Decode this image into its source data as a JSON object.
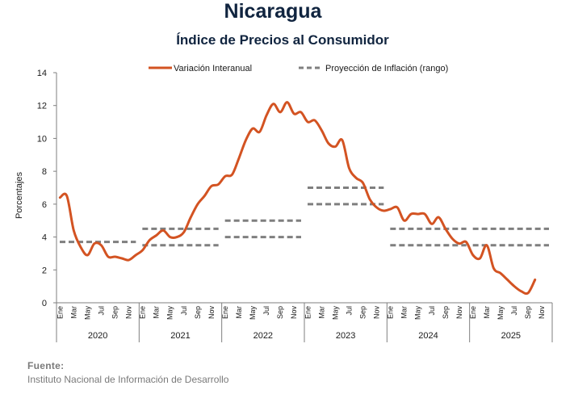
{
  "title": "Nicaragua",
  "subtitle": "Índice de Precios al Consumidor",
  "source": {
    "label": "Fuente:",
    "text": "Instituto Nacional de Información de Desarrollo"
  },
  "colors": {
    "series": "#d35322",
    "projection": "#7f7f7f",
    "axis": "#7f7f7f"
  },
  "chart_data": {
    "type": "line",
    "ylabel": "Porcentajes",
    "xlabel": "",
    "ylim": [
      0,
      14
    ],
    "yticks": [
      0,
      2,
      4,
      6,
      8,
      10,
      12,
      14
    ],
    "grid": false,
    "legend_position": "top",
    "month_labels": [
      "Ene",
      "Mar",
      "May",
      "Jul",
      "Sep",
      "Nov"
    ],
    "years": [
      "2020",
      "2021",
      "2022",
      "2023",
      "2024",
      "2025"
    ],
    "series": [
      {
        "name": "Variación Interanual",
        "style": "solid",
        "start": "2020-01",
        "values": [
          6.4,
          6.5,
          4.4,
          3.4,
          2.9,
          3.6,
          3.5,
          2.8,
          2.8,
          2.7,
          2.6,
          2.9,
          3.2,
          3.8,
          4.1,
          4.4,
          4.0,
          4.0,
          4.3,
          5.2,
          6.0,
          6.5,
          7.1,
          7.2,
          7.7,
          7.8,
          8.8,
          9.9,
          10.6,
          10.4,
          11.4,
          12.1,
          11.6,
          12.2,
          11.5,
          11.6,
          11.0,
          11.1,
          10.5,
          9.7,
          9.5,
          9.9,
          8.2,
          7.6,
          7.3,
          6.3,
          5.8,
          5.6,
          5.7,
          5.8,
          5.0,
          5.4,
          5.4,
          5.4,
          4.8,
          5.2,
          4.5,
          3.9,
          3.6,
          3.7,
          2.9,
          2.7,
          3.5,
          2.1,
          1.8,
          1.4,
          1.0,
          0.7,
          0.6,
          1.4
        ]
      },
      {
        "name": "Proyección de Inflación (rango)",
        "style": "dashed",
        "ranges": [
          {
            "year": "2020",
            "low": 3.7,
            "high": 3.7
          },
          {
            "year": "2021",
            "low": 3.5,
            "high": 4.5
          },
          {
            "year": "2022",
            "low": 4.0,
            "high": 5.0
          },
          {
            "year": "2023",
            "low": 6.0,
            "high": 7.0
          },
          {
            "year": "2024",
            "low": 3.5,
            "high": 4.5
          },
          {
            "year": "2025",
            "low": 3.5,
            "high": 4.5
          }
        ]
      }
    ]
  }
}
